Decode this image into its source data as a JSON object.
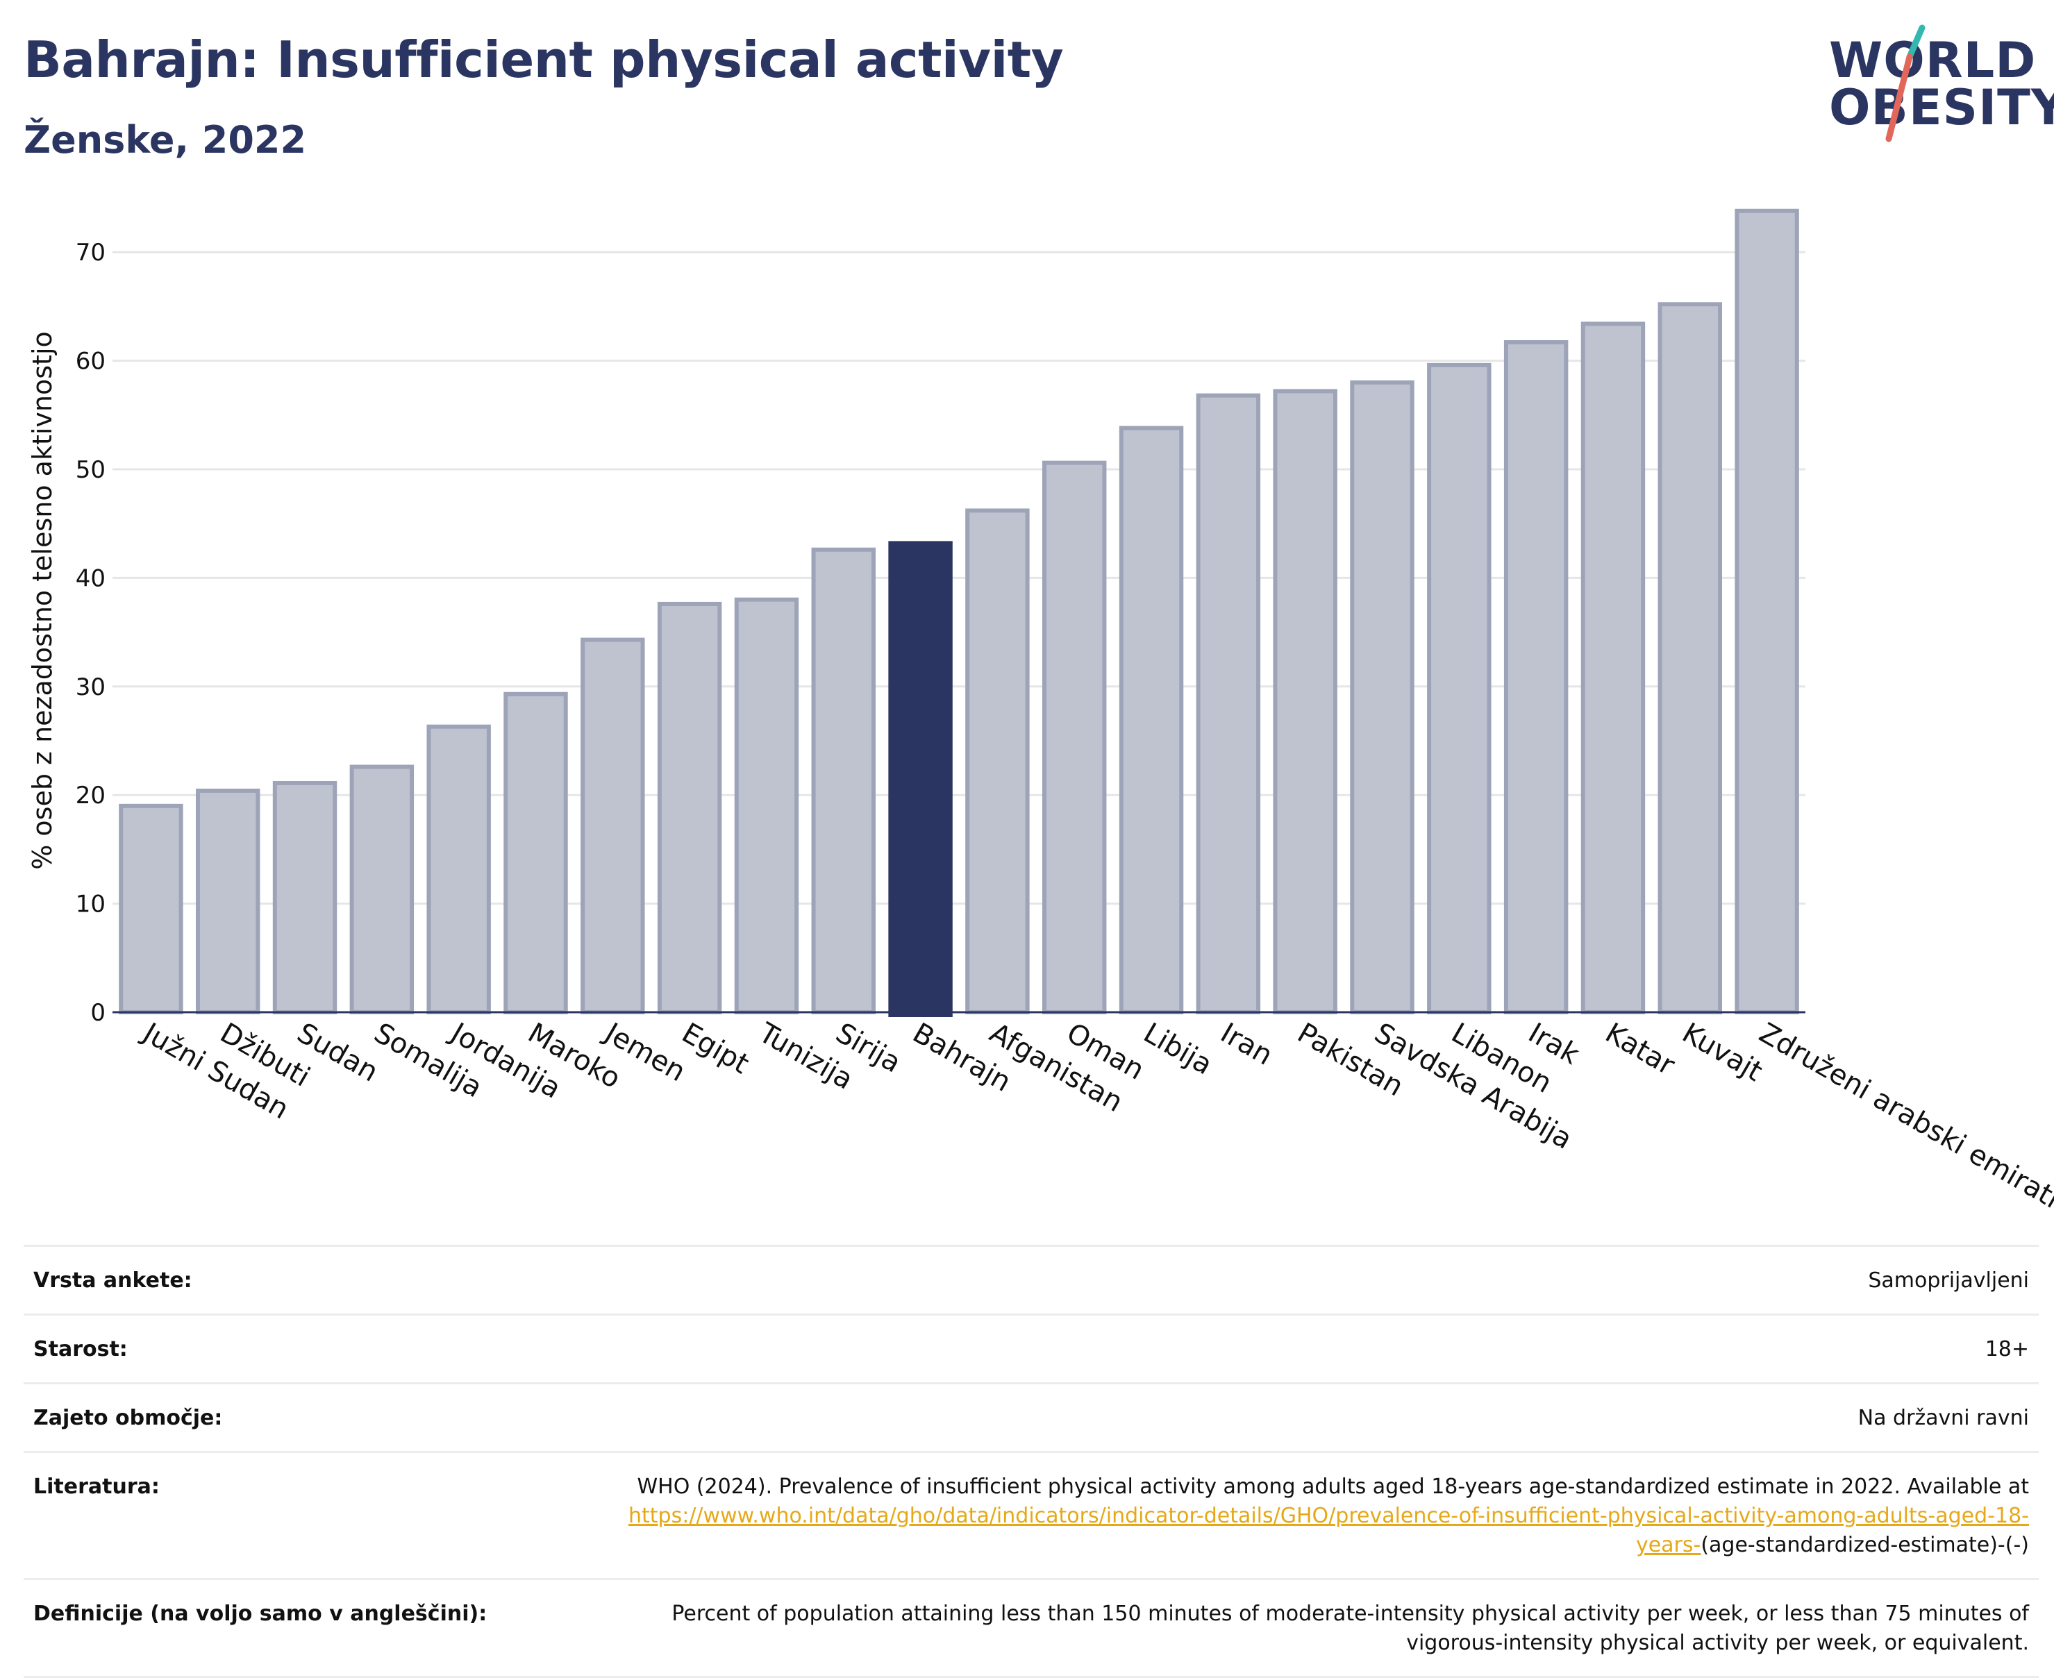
{
  "title": "Bahrajn: Insufficient physical activity",
  "subtitle": "Ženske, 2022",
  "logo": {
    "line1": "WORLD",
    "line2": "OBESITY"
  },
  "colors": {
    "bar": "#bfc3d0",
    "bar_stroke": "#9ea4b8",
    "highlight": "#2b3561",
    "text": "#2b3561",
    "link": "#e6a817",
    "grid": "#e6e6e6"
  },
  "chart_data": {
    "type": "bar",
    "title": "Bahrajn: Insufficient physical activity",
    "subtitle": "Ženske, 2022",
    "ylabel": "% oseb z nezadostno telesno aktivnostjo",
    "ylim": [
      0,
      75
    ],
    "yticks": [
      0,
      10,
      20,
      30,
      40,
      50,
      60,
      70
    ],
    "grid": true,
    "highlight": "Bahrajn",
    "categories": [
      "Južni Sudan",
      "Džibuti",
      "Sudan",
      "Somalija",
      "Jordanija",
      "Maroko",
      "Jemen",
      "Egipt",
      "Tunizija",
      "Sirija",
      "Bahrajn",
      "Afganistan",
      "Oman",
      "Libija",
      "Iran",
      "Pakistan",
      "Savdska Arabija",
      "Libanon",
      "Irak",
      "Katar",
      "Kuvajt",
      "Združeni arabski emirati"
    ],
    "values": [
      19.0,
      20.4,
      21.1,
      22.6,
      26.3,
      29.3,
      34.3,
      37.6,
      38.0,
      42.6,
      43.2,
      46.2,
      50.6,
      53.8,
      56.8,
      57.2,
      58.0,
      59.6,
      61.7,
      63.4,
      65.2,
      73.8
    ]
  },
  "info": [
    {
      "label": "Vrsta ankete:",
      "value": "Samoprijavljeni"
    },
    {
      "label": "Starost:",
      "value": "18+"
    },
    {
      "label": "Zajeto območje:",
      "value": "Na državni ravni"
    },
    {
      "label": "Literatura:",
      "value_prefix": "WHO (2024). Prevalence of insufficient physical activity among adults aged 18-years age-standardized estimate in 2022. Available at ",
      "link": "https://www.who.int/data/gho/data/indicators/indicator-details/GHO/prevalence-of-insufficient-physical-activity-among-adults-aged-18-years-",
      "value_suffix": "(age-standardized-estimate)-(-)"
    },
    {
      "label": "Definicije (na voljo samo v angleščini):",
      "value": "Percent of population attaining less than 150 minutes of moderate-intensity physical activity per week, or less than 75 minutes of vigorous-intensity physical activity per week, or equivalent."
    }
  ]
}
